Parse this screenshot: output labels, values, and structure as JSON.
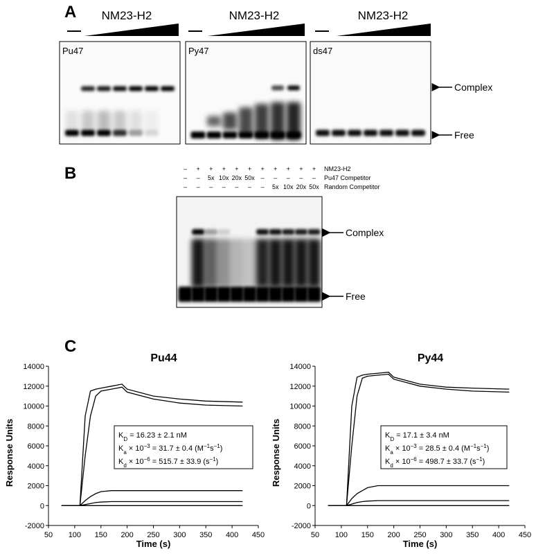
{
  "figure": {
    "panel_a": {
      "label": "A",
      "protein_labels": [
        "NM23-H2",
        "NM23-H2",
        "NM23-H2"
      ],
      "gels": [
        "Pu47",
        "Py47",
        "ds47"
      ],
      "arrows": [
        "Complex",
        "Free"
      ]
    },
    "panel_b": {
      "label": "B",
      "rows": [
        {
          "name": "NM23-H2",
          "lanes": [
            "–",
            "+",
            "+",
            "+",
            "+",
            "+",
            "+",
            "+",
            "+",
            "+",
            "+"
          ]
        },
        {
          "name": "Pu47 Competitor",
          "lanes": [
            "–",
            "–",
            "5x",
            "10x",
            "20x",
            "50x",
            "–",
            "–",
            "–",
            "–",
            "–"
          ]
        },
        {
          "name": "Random Competitor",
          "lanes": [
            "–",
            "–",
            "–",
            "–",
            "–",
            "–",
            "–",
            "5x",
            "10x",
            "20x",
            "50x"
          ]
        }
      ],
      "arrows": [
        "Complex",
        "Free"
      ]
    },
    "panel_c": {
      "label": "C"
    }
  },
  "chart_data": [
    {
      "type": "line",
      "title": "Pu44",
      "x_label": "Time (s)",
      "y_label": "Response Units",
      "x": [
        75,
        110,
        120,
        130,
        140,
        150,
        170,
        190,
        200,
        250,
        300,
        350,
        420
      ],
      "series": [
        {
          "color": "#000000",
          "values": [
            0,
            0,
            9000,
            11500,
            11700,
            11800,
            12000,
            12200,
            11700,
            11000,
            10700,
            10500,
            10400
          ]
        },
        {
          "color": "#000000",
          "values": [
            0,
            0,
            5000,
            9000,
            11000,
            11500,
            11700,
            11900,
            11400,
            10700,
            10300,
            10100,
            10000
          ]
        },
        {
          "color": "#000000",
          "values": [
            0,
            0,
            500,
            900,
            1200,
            1400,
            1500,
            1500,
            1500,
            1500,
            1500,
            1500,
            1500
          ]
        },
        {
          "color": "#000000",
          "values": [
            0,
            0,
            100,
            200,
            300,
            350,
            400,
            400,
            400,
            400,
            400,
            400,
            400
          ]
        },
        {
          "color": "#000000",
          "values": [
            0,
            0,
            0,
            0,
            0,
            0,
            0,
            0,
            0,
            0,
            0,
            0,
            0
          ]
        }
      ],
      "xlim": [
        50,
        450
      ],
      "ylim": [
        -2000,
        14000
      ],
      "xticks": [
        50,
        100,
        150,
        200,
        250,
        300,
        350,
        400,
        450
      ],
      "yticks": [
        -2000,
        0,
        2000,
        4000,
        6000,
        8000,
        10000,
        12000,
        14000
      ],
      "annotation": [
        [
          {
            "text": "K"
          },
          {
            "text": "D",
            "pos": "sub"
          },
          {
            "text": " = 16.23 ± 2.1 nM"
          }
        ],
        [
          {
            "text": "K"
          },
          {
            "text": "a",
            "pos": "sub"
          },
          {
            "text": " × 10"
          },
          {
            "text": "−3",
            "pos": "sup"
          },
          {
            "text": " = 31.7 ± 0.4 (M"
          },
          {
            "text": "−1",
            "pos": "sup"
          },
          {
            "text": "s"
          },
          {
            "text": "−1",
            "pos": "sup"
          },
          {
            "text": ")"
          }
        ],
        [
          {
            "text": "K"
          },
          {
            "text": "d",
            "pos": "sub"
          },
          {
            "text": " × 10"
          },
          {
            "text": "−6",
            "pos": "sup"
          },
          {
            "text": " = 515.7 ± 33.9 (s"
          },
          {
            "text": "−1",
            "pos": "sup"
          },
          {
            "text": ")"
          }
        ]
      ]
    },
    {
      "type": "line",
      "title": "Py44",
      "x_label": "Time (s)",
      "y_label": "Response Units",
      "x": [
        75,
        110,
        120,
        130,
        140,
        150,
        170,
        190,
        200,
        250,
        300,
        350,
        420
      ],
      "series": [
        {
          "color": "#000000",
          "values": [
            0,
            0,
            10000,
            12900,
            13100,
            13200,
            13300,
            13400,
            12900,
            12200,
            11900,
            11800,
            11700
          ]
        },
        {
          "color": "#000000",
          "values": [
            0,
            0,
            6000,
            11000,
            12800,
            13000,
            13100,
            13200,
            12700,
            12000,
            11700,
            11500,
            11400
          ]
        },
        {
          "color": "#000000",
          "values": [
            0,
            0,
            700,
            1200,
            1500,
            1800,
            2000,
            2000,
            2000,
            2000,
            2000,
            2000,
            2000
          ]
        },
        {
          "color": "#000000",
          "values": [
            0,
            0,
            150,
            300,
            400,
            450,
            500,
            500,
            500,
            500,
            500,
            500,
            500
          ]
        },
        {
          "color": "#000000",
          "values": [
            0,
            0,
            0,
            0,
            0,
            0,
            0,
            0,
            0,
            0,
            0,
            0,
            0
          ]
        }
      ],
      "xlim": [
        50,
        450
      ],
      "ylim": [
        -2000,
        14000
      ],
      "xticks": [
        50,
        100,
        150,
        200,
        250,
        300,
        350,
        400,
        450
      ],
      "yticks": [
        -2000,
        0,
        2000,
        4000,
        6000,
        8000,
        10000,
        12000,
        14000
      ],
      "annotation": [
        [
          {
            "text": "K"
          },
          {
            "text": "D",
            "pos": "sub"
          },
          {
            "text": " = 17.1 ± 3.4 nM"
          }
        ],
        [
          {
            "text": "K"
          },
          {
            "text": "a",
            "pos": "sub"
          },
          {
            "text": " × 10"
          },
          {
            "text": "−3",
            "pos": "sup"
          },
          {
            "text": " = 28.5 ± 0.4 (M"
          },
          {
            "text": "−1",
            "pos": "sup"
          },
          {
            "text": "s"
          },
          {
            "text": "−1",
            "pos": "sup"
          },
          {
            "text": ")"
          }
        ],
        [
          {
            "text": "K"
          },
          {
            "text": "d",
            "pos": "sub"
          },
          {
            "text": " × 10"
          },
          {
            "text": "−6",
            "pos": "sup"
          },
          {
            "text": " = 498.7 ± 33.7 (s"
          },
          {
            "text": "−1",
            "pos": "sup"
          },
          {
            "text": ")"
          }
        ]
      ]
    }
  ]
}
